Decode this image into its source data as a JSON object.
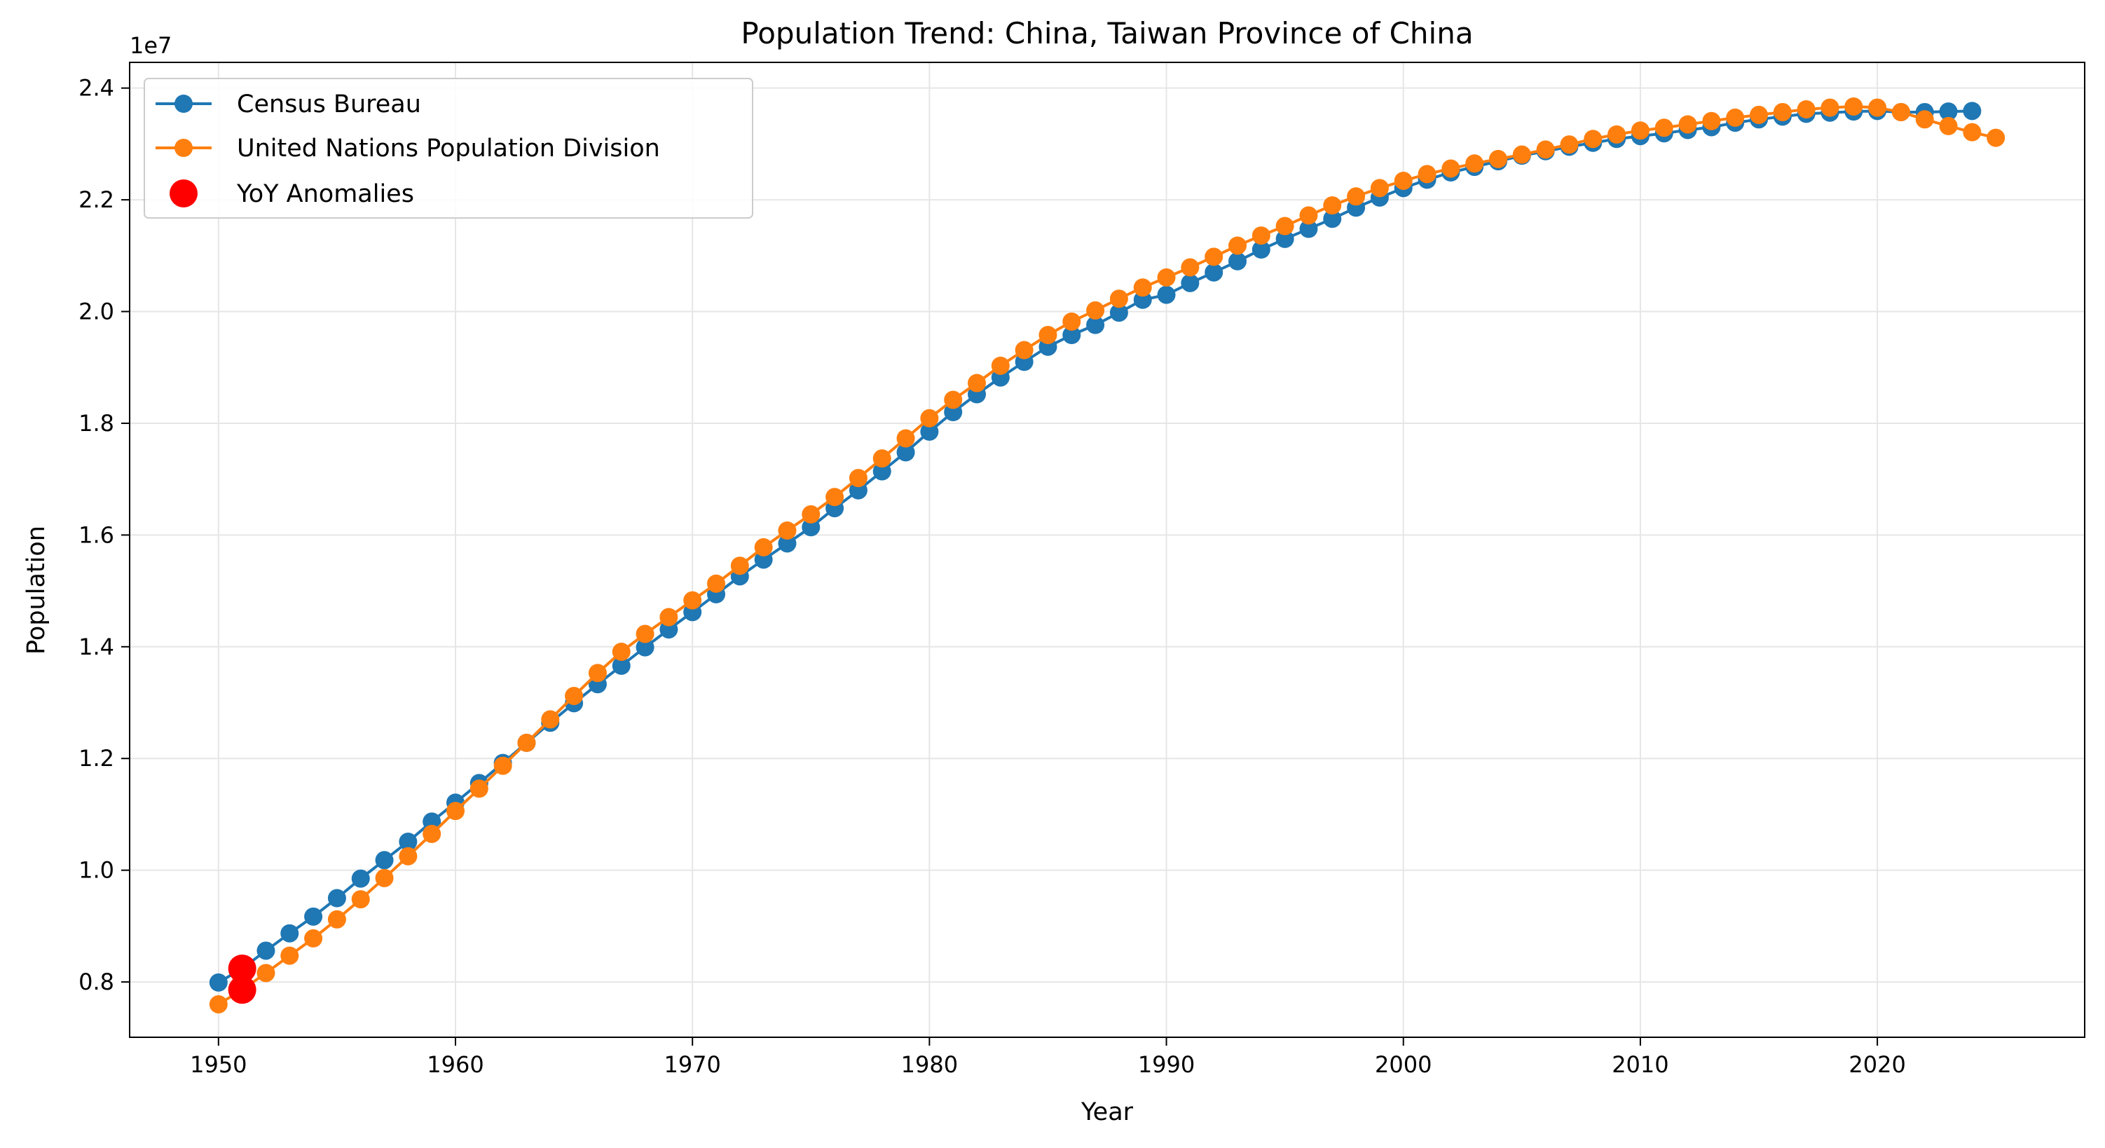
{
  "chart_data": {
    "type": "line",
    "title": "Population Trend: China, Taiwan Province of China",
    "xlabel": "Year",
    "ylabel": "Population",
    "y_offset_label": "1e7",
    "xlim": [
      1946.25,
      2028.75
    ],
    "ylim": [
      7010000,
      24460000
    ],
    "x_ticks": [
      1950,
      1960,
      1970,
      1980,
      1990,
      2000,
      2010,
      2020
    ],
    "y_ticks": [
      8000000,
      10000000,
      12000000,
      14000000,
      16000000,
      18000000,
      20000000,
      22000000,
      24000000
    ],
    "y_tick_labels": [
      "0.8",
      "1.0",
      "1.2",
      "1.4",
      "1.6",
      "1.8",
      "2.0",
      "2.2",
      "2.4"
    ],
    "grid": true,
    "legend_position": "top-left",
    "colors": {
      "census": "#1f77b4",
      "un": "#ff7f0e",
      "anomaly": "#ff0000",
      "grid": "#e6e6e6"
    },
    "series": [
      {
        "name": "Census Bureau",
        "color": "#1f77b4",
        "x": [
          1950,
          1951,
          1952,
          1953,
          1954,
          1955,
          1956,
          1957,
          1958,
          1959,
          1960,
          1961,
          1962,
          1963,
          1964,
          1965,
          1966,
          1967,
          1968,
          1969,
          1970,
          1971,
          1972,
          1973,
          1974,
          1975,
          1976,
          1977,
          1978,
          1979,
          1980,
          1981,
          1982,
          1983,
          1984,
          1985,
          1986,
          1987,
          1988,
          1989,
          1990,
          1991,
          1992,
          1993,
          1994,
          1995,
          1996,
          1997,
          1998,
          1999,
          2000,
          2001,
          2002,
          2003,
          2004,
          2005,
          2006,
          2007,
          2008,
          2009,
          2010,
          2011,
          2012,
          2013,
          2014,
          2015,
          2016,
          2017,
          2018,
          2019,
          2020,
          2021,
          2022,
          2023,
          2024
        ],
        "y": [
          7990000,
          8240000,
          8560000,
          8870000,
          9170000,
          9500000,
          9850000,
          10180000,
          10510000,
          10870000,
          11210000,
          11560000,
          11920000,
          12280000,
          12640000,
          12990000,
          13330000,
          13660000,
          13990000,
          14310000,
          14620000,
          14940000,
          15260000,
          15560000,
          15850000,
          16140000,
          16480000,
          16800000,
          17140000,
          17480000,
          17850000,
          18200000,
          18520000,
          18820000,
          19100000,
          19370000,
          19580000,
          19760000,
          19980000,
          20210000,
          20300000,
          20510000,
          20700000,
          20900000,
          21110000,
          21300000,
          21480000,
          21660000,
          21860000,
          22040000,
          22210000,
          22360000,
          22490000,
          22590000,
          22690000,
          22790000,
          22870000,
          22950000,
          23020000,
          23090000,
          23140000,
          23190000,
          23250000,
          23300000,
          23380000,
          23440000,
          23490000,
          23540000,
          23560000,
          23580000,
          23590000,
          23570000,
          23570000,
          23580000,
          23590000
        ]
      },
      {
        "name": "United Nations Population Division",
        "color": "#ff7f0e",
        "x": [
          1950,
          1951,
          1952,
          1953,
          1954,
          1955,
          1956,
          1957,
          1958,
          1959,
          1960,
          1961,
          1962,
          1963,
          1964,
          1965,
          1966,
          1967,
          1968,
          1969,
          1970,
          1971,
          1972,
          1973,
          1974,
          1975,
          1976,
          1977,
          1978,
          1979,
          1980,
          1981,
          1982,
          1983,
          1984,
          1985,
          1986,
          1987,
          1988,
          1989,
          1990,
          1991,
          1992,
          1993,
          1994,
          1995,
          1996,
          1997,
          1998,
          1999,
          2000,
          2001,
          2002,
          2003,
          2004,
          2005,
          2006,
          2007,
          2008,
          2009,
          2010,
          2011,
          2012,
          2013,
          2014,
          2015,
          2016,
          2017,
          2018,
          2019,
          2020,
          2021,
          2022,
          2023,
          2024,
          2025
        ],
        "y": [
          7600000,
          7860000,
          8160000,
          8470000,
          8780000,
          9120000,
          9480000,
          9860000,
          10250000,
          10650000,
          11060000,
          11460000,
          11870000,
          12280000,
          12700000,
          13120000,
          13530000,
          13910000,
          14230000,
          14530000,
          14830000,
          15130000,
          15450000,
          15780000,
          16080000,
          16370000,
          16680000,
          17020000,
          17370000,
          17730000,
          18090000,
          18420000,
          18720000,
          19030000,
          19310000,
          19580000,
          19820000,
          20020000,
          20230000,
          20430000,
          20610000,
          20790000,
          20980000,
          21180000,
          21360000,
          21530000,
          21720000,
          21900000,
          22060000,
          22210000,
          22340000,
          22460000,
          22560000,
          22650000,
          22730000,
          22810000,
          22900000,
          22990000,
          23090000,
          23170000,
          23240000,
          23290000,
          23350000,
          23410000,
          23470000,
          23520000,
          23570000,
          23620000,
          23650000,
          23670000,
          23650000,
          23570000,
          23440000,
          23320000,
          23210000,
          23110000
        ]
      },
      {
        "name": "YoY Anomalies",
        "color": "#ff0000",
        "markers_only": true,
        "x": [
          1951,
          1951
        ],
        "y": [
          8240000,
          7860000
        ]
      }
    ]
  }
}
